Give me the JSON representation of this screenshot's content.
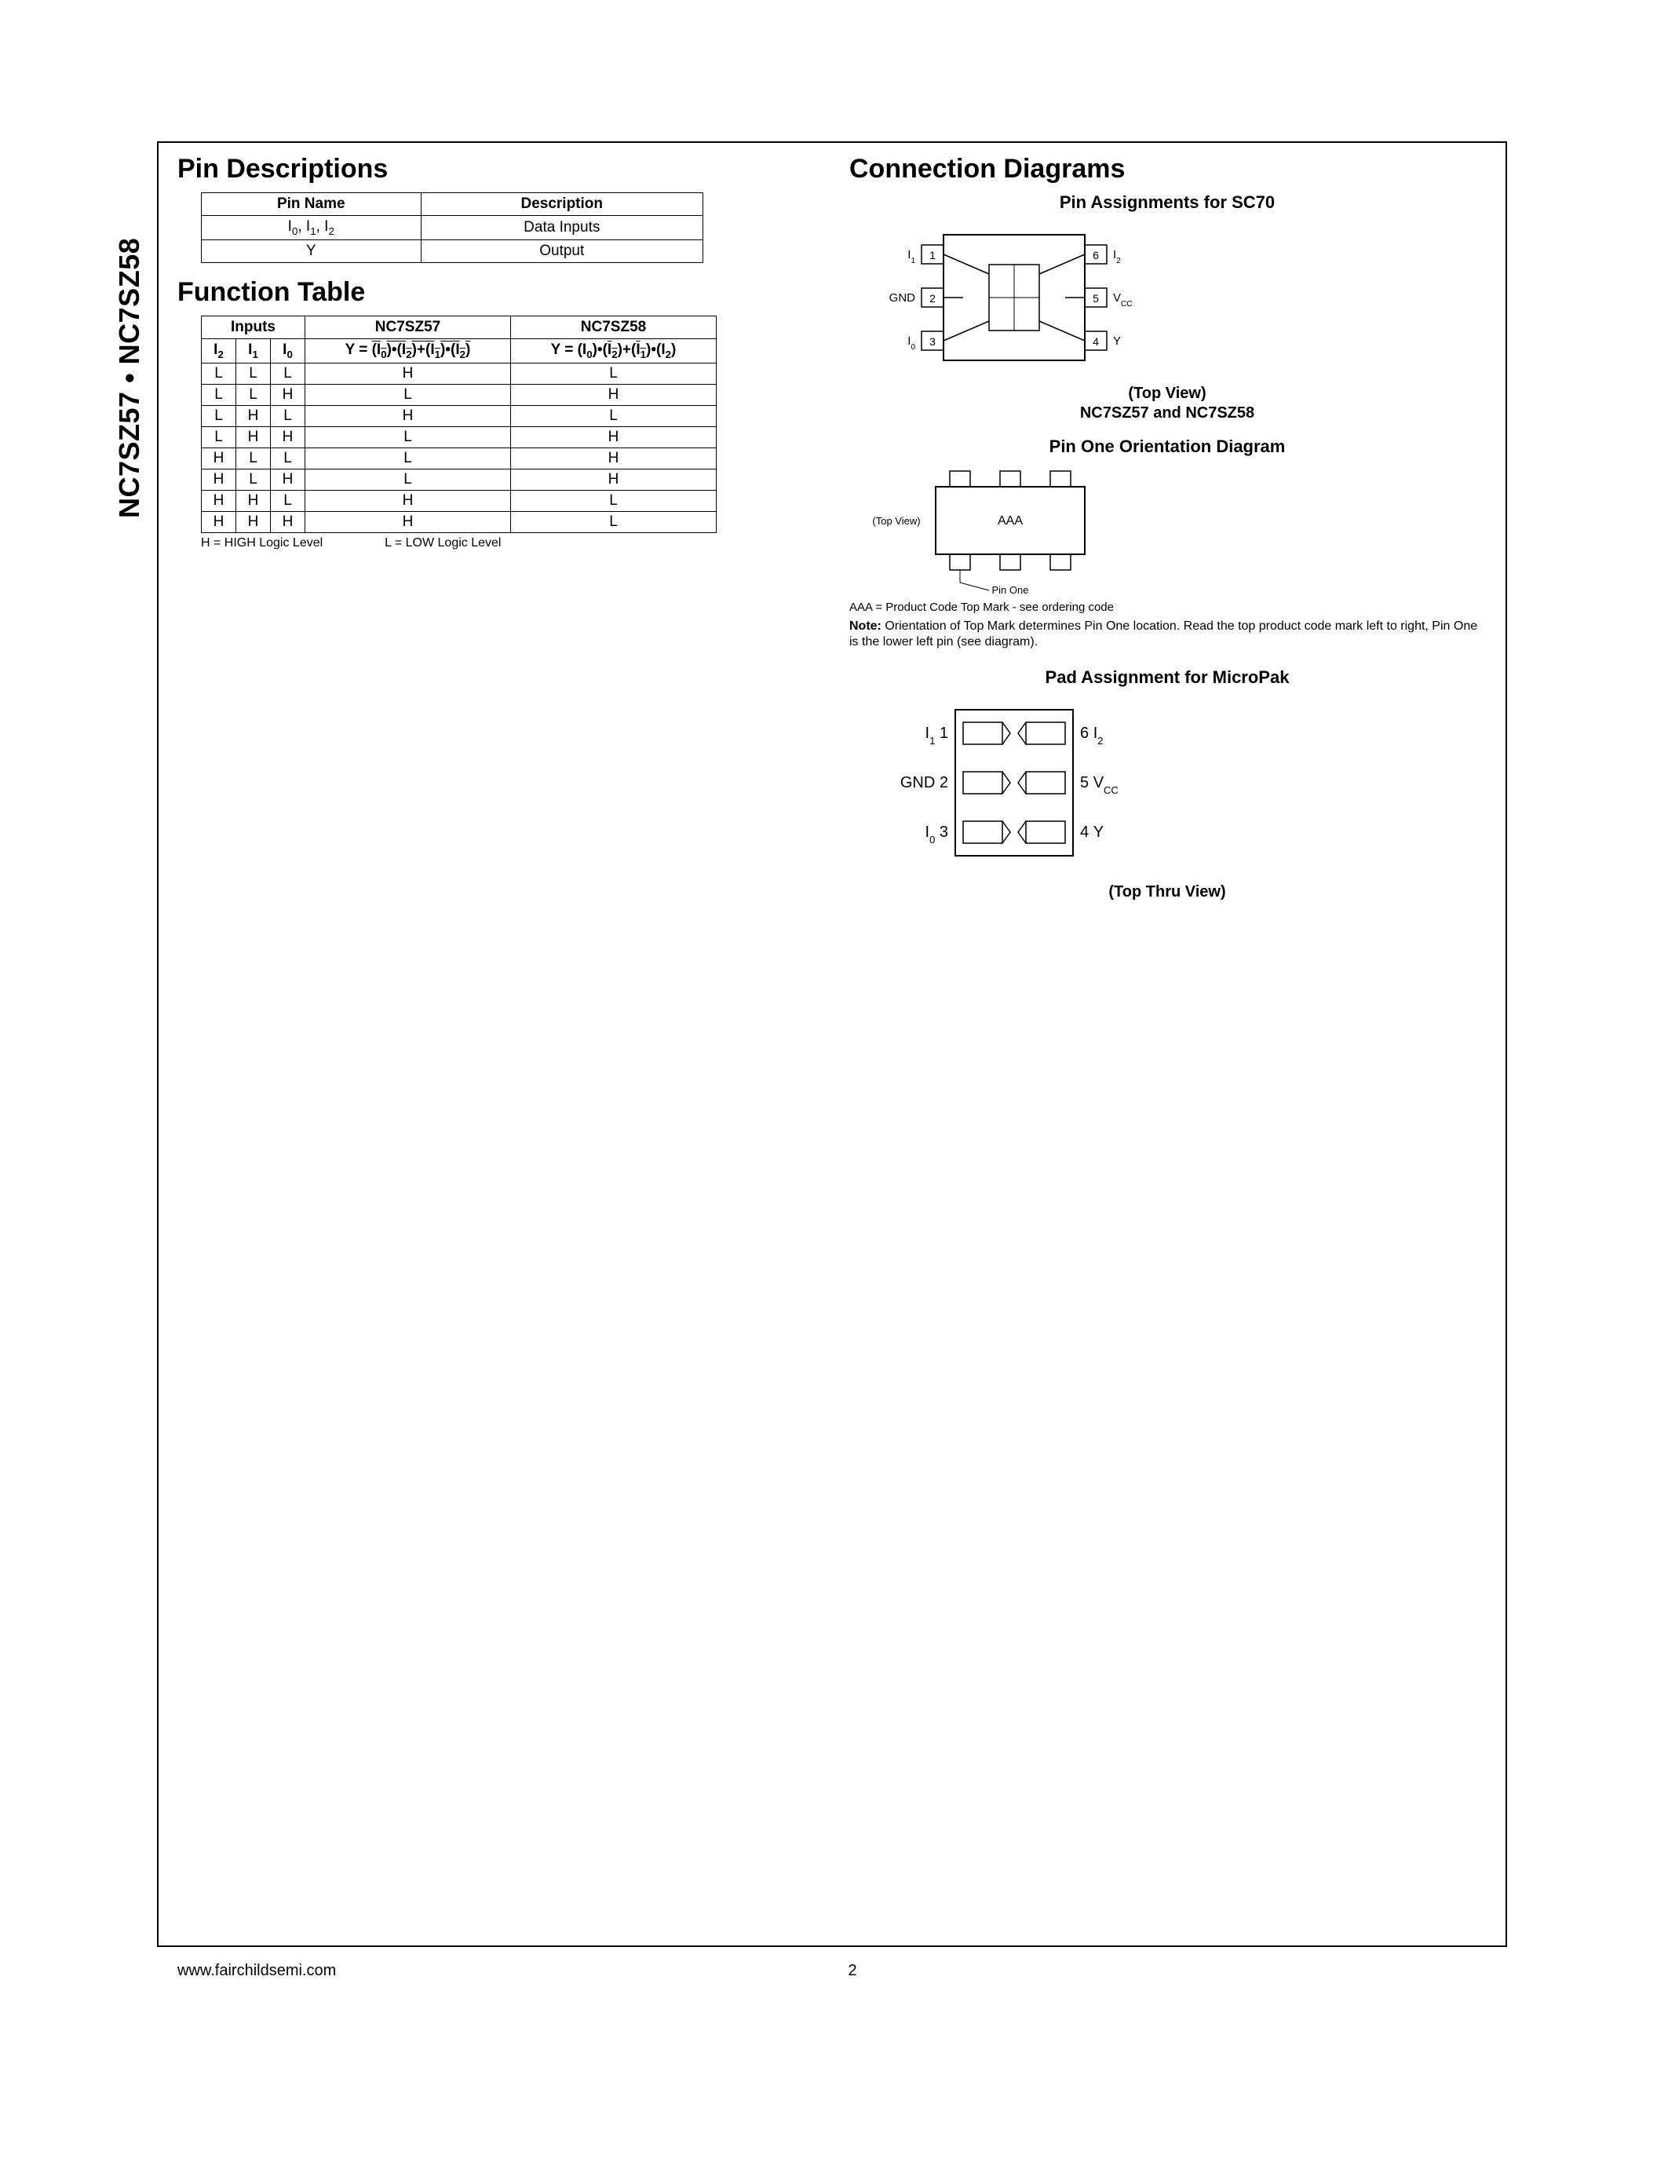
{
  "side_title": "NC7SZ57 • NC7SZ58",
  "sections": {
    "pin_desc_title": "Pin Descriptions",
    "func_title": "Function Table",
    "conn_title": "Connection Diagrams"
  },
  "pin_desc": {
    "headers": [
      "Pin Name",
      "Description"
    ],
    "rows": [
      [
        "I₀, I₁, I₂",
        "Data Inputs"
      ],
      [
        "Y",
        "Output"
      ]
    ]
  },
  "func_table": {
    "group_headers": [
      "Inputs",
      "NC7SZ57",
      "NC7SZ58"
    ],
    "sub_headers": {
      "i2": "I",
      "i2s": "2",
      "i1": "I",
      "i1s": "1",
      "i0": "I",
      "i0s": "0"
    },
    "rows": [
      [
        "L",
        "L",
        "L",
        "H",
        "L"
      ],
      [
        "L",
        "L",
        "H",
        "L",
        "H"
      ],
      [
        "L",
        "H",
        "L",
        "H",
        "L"
      ],
      [
        "L",
        "H",
        "H",
        "L",
        "H"
      ],
      [
        "H",
        "L",
        "L",
        "L",
        "H"
      ],
      [
        "H",
        "L",
        "H",
        "L",
        "H"
      ],
      [
        "H",
        "H",
        "L",
        "H",
        "L"
      ],
      [
        "H",
        "H",
        "H",
        "H",
        "L"
      ]
    ],
    "legend_h": "H = HIGH Logic Level",
    "legend_l": "L = LOW Logic Level"
  },
  "sc70": {
    "title": "Pin Assignments for SC70",
    "topview": "(Top View)",
    "subtitle": "NC7SZ57 and NC7SZ58",
    "pins_left": [
      [
        "I",
        "1",
        "1"
      ],
      [
        "GND",
        "",
        "2"
      ],
      [
        "I",
        "0",
        "3"
      ]
    ],
    "pins_right": [
      [
        "6",
        "I",
        "2"
      ],
      [
        "5",
        "V",
        "CC"
      ],
      [
        "4",
        "Y",
        ""
      ]
    ]
  },
  "pin_one": {
    "title": "Pin One Orientation Diagram",
    "topview_label": "(Top View)",
    "mark": "AAA",
    "pin_one_label": "Pin One",
    "aaa_note": "AAA = Product Code Top Mark - see ordering code",
    "note_bold": "Note:",
    "note_text": " Orientation of Top Mark determines Pin One location. Read the top product code mark left to right, Pin One is the lower left pin (see diagram)."
  },
  "micropak": {
    "title": "Pad Assignment for MicroPak",
    "bottom_label": "(Top Thru View)",
    "left": [
      [
        "I",
        "1",
        "1"
      ],
      [
        "GND",
        "",
        "2"
      ],
      [
        "I",
        "0",
        "3"
      ]
    ],
    "right": [
      [
        "6",
        "I",
        "2"
      ],
      [
        "5",
        "V",
        "CC"
      ],
      [
        "4",
        "Y",
        ""
      ]
    ]
  },
  "footer": {
    "url": "www.fairchildsemi.com",
    "page": "2"
  },
  "colors": {
    "fg": "#000000",
    "bg": "#ffffff"
  }
}
